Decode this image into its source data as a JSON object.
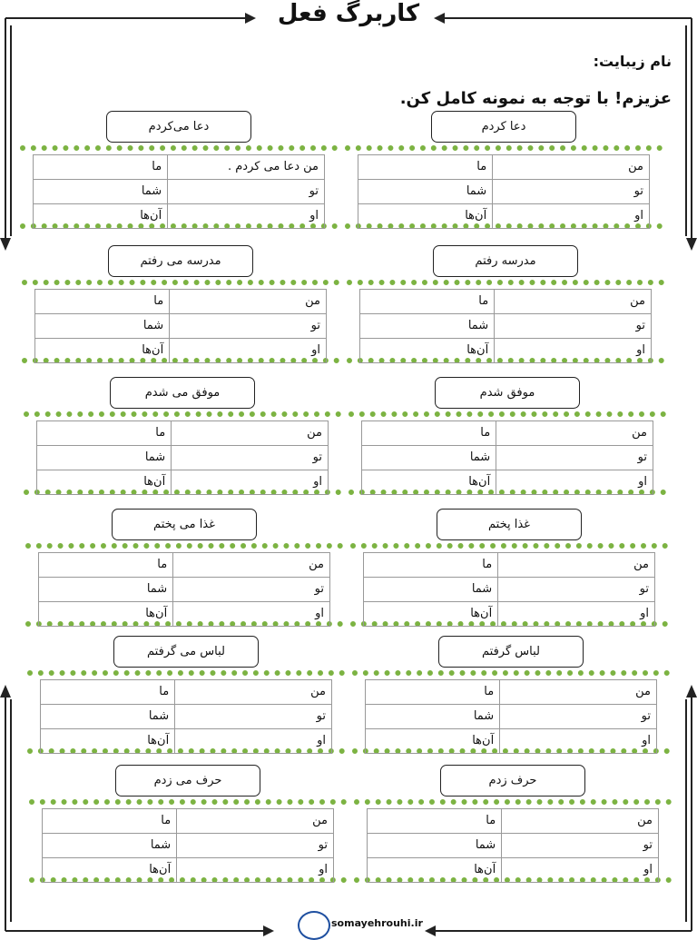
{
  "header": {
    "title": "کاربرگ فعل",
    "name_label": "نام زیبایت:",
    "instruction": "عزیزم! با توجه به نمونه کامل کن."
  },
  "exercises": [
    {
      "label": "دعا کردم",
      "rows": [
        [
          "من",
          "ما"
        ],
        [
          "تو",
          "شما"
        ],
        [
          "او",
          "آن‌ها"
        ]
      ]
    },
    {
      "label": "دعا می‌کردم",
      "rows": [
        [
          "من دعا می کردم .",
          "ما"
        ],
        [
          "تو",
          "شما"
        ],
        [
          "او",
          "آن‌ها"
        ]
      ]
    },
    {
      "label": "مدرسه رفتم",
      "rows": [
        [
          "من",
          "ما"
        ],
        [
          "تو",
          "شما"
        ],
        [
          "او",
          "آن‌ها"
        ]
      ]
    },
    {
      "label": "مدرسه می رفتم",
      "rows": [
        [
          "من",
          "ما"
        ],
        [
          "تو",
          "شما"
        ],
        [
          "او",
          "آن‌ها"
        ]
      ]
    },
    {
      "label": "موفق شدم",
      "rows": [
        [
          "من",
          "ما"
        ],
        [
          "تو",
          "شما"
        ],
        [
          "او",
          "آن‌ها"
        ]
      ]
    },
    {
      "label": "موفق  می شدم",
      "rows": [
        [
          "من",
          "ما"
        ],
        [
          "تو",
          "شما"
        ],
        [
          "او",
          "آن‌ها"
        ]
      ]
    },
    {
      "label": "غذا پختم",
      "rows": [
        [
          "من",
          "ما"
        ],
        [
          "تو",
          "شما"
        ],
        [
          "او",
          "آن‌ها"
        ]
      ]
    },
    {
      "label": "غذا می پختم",
      "rows": [
        [
          "من",
          "ما"
        ],
        [
          "تو",
          "شما"
        ],
        [
          "او",
          "آن‌ها"
        ]
      ]
    },
    {
      "label": "لباس گرفتم",
      "rows": [
        [
          "من",
          "ما"
        ],
        [
          "تو",
          "شما"
        ],
        [
          "او",
          "آن‌ها"
        ]
      ]
    },
    {
      "label": "لباس می گرفتم",
      "rows": [
        [
          "من",
          "ما"
        ],
        [
          "تو",
          "شما"
        ],
        [
          "او",
          "آن‌ها"
        ]
      ]
    },
    {
      "label": "حرف زدم",
      "rows": [
        [
          "من",
          "ما"
        ],
        [
          "تو",
          "شما"
        ],
        [
          "او",
          "آن‌ها"
        ]
      ]
    },
    {
      "label": "حرف می زدم",
      "rows": [
        [
          "من",
          "ما"
        ],
        [
          "تو",
          "شما"
        ],
        [
          "او",
          "آن‌ها"
        ]
      ]
    }
  ],
  "footer": {
    "site": "somayehrouhi.ir"
  }
}
